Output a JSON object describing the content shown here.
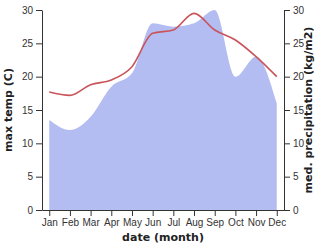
{
  "chart_data": {
    "type": "line",
    "categories": [
      "Jan",
      "Feb",
      "Mar",
      "Apr",
      "May",
      "Jun",
      "Jul",
      "Aug",
      "Sep",
      "Oct",
      "Nov",
      "Dec"
    ],
    "x_label": "date (month)",
    "y_label": "max temp (C)",
    "y2_label": "med. precipitation (kg/m2)",
    "ylim": [
      0,
      30
    ],
    "yticks": [
      0,
      5,
      10,
      15,
      20,
      25,
      30
    ],
    "y2lim": [
      0,
      30
    ],
    "y2ticks": [
      0,
      5,
      10,
      15,
      20,
      25,
      30
    ],
    "series": [
      {
        "type": "line",
        "color": "#c9545a",
        "values": [
          17.7,
          17.2,
          18.8,
          19.5,
          21.5,
          26.5,
          27,
          29.5,
          27,
          25.5,
          23,
          20
        ]
      },
      {
        "type": "area",
        "axis": "y2",
        "color": "#b3bdf2",
        "values": [
          13.5,
          12,
          14,
          18.5,
          20.5,
          28,
          27.5,
          28,
          30,
          20,
          23,
          16
        ]
      }
    ]
  }
}
